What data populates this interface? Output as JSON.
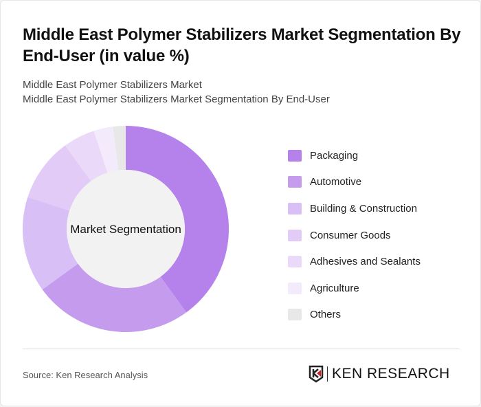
{
  "title": "Middle East Polymer Stabilizers Market Segmentation By End-User (in value %)",
  "subtitle1": "Middle East Polymer Stabilizers Market",
  "subtitle2": "Middle East Polymer Stabilizers Market Segmentation By End-User",
  "source": "Source: Ken Research Analysis",
  "logo_text": "KEN RESEARCH",
  "chart_data": {
    "type": "pie",
    "variant": "donut",
    "center_label": "Market Segmentation",
    "legend_position": "right",
    "categories": [
      "Packaging",
      "Automotive",
      "Building & Construction",
      "Consumer Goods",
      "Adhesives and Sealants",
      "Agriculture",
      "Others"
    ],
    "values": [
      40,
      25,
      15,
      10,
      5,
      3,
      2
    ],
    "colors": [
      "#b482ea",
      "#c59bee",
      "#d8bff5",
      "#e2cbf6",
      "#ead9f9",
      "#f3eafc",
      "#e8e8e8"
    ]
  }
}
